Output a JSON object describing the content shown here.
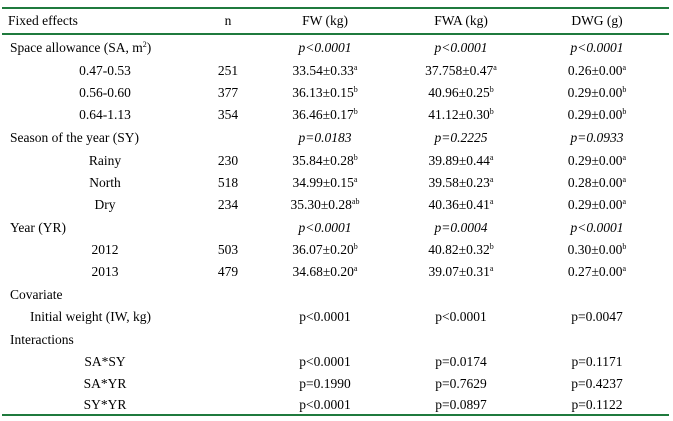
{
  "header": {
    "fixed_effects": "Fixed effects",
    "n": "n",
    "fw": "FW (kg)",
    "fwa": "FWA (kg)",
    "dwg": "DWG (g)"
  },
  "sections": {
    "sa": {
      "label": "Space allowance (SA, m",
      "label_sup": "2",
      "label_end": ")",
      "p_fw": "p<0.0001",
      "p_fwa": "p<0.0001",
      "p_dwg": "p<0.0001",
      "rows": [
        {
          "level": "0.47-0.53",
          "n": "251",
          "fw": "33.54±0.33",
          "fw_sup": "a",
          "fwa": "37.758±0.47",
          "fwa_sup": "a",
          "dwg": "0.26±0.00",
          "dwg_sup": "a"
        },
        {
          "level": "0.56-0.60",
          "n": "377",
          "fw": "36.13±0.15",
          "fw_sup": "b",
          "fwa": "40.96±0.25",
          "fwa_sup": "b",
          "dwg": "0.29±0.00",
          "dwg_sup": "b"
        },
        {
          "level": "0.64-1.13",
          "n": "354",
          "fw": "36.46±0.17",
          "fw_sup": "b",
          "fwa": "41.12±0.30",
          "fwa_sup": "b",
          "dwg": "0.29±0.00",
          "dwg_sup": "b"
        }
      ]
    },
    "sy": {
      "label": "Season of the year (SY)",
      "p_fw": "p=0.0183",
      "p_fwa": "p=0.2225",
      "p_dwg": "p=0.0933",
      "rows": [
        {
          "level": "Rainy",
          "n": "230",
          "fw": "35.84±0.28",
          "fw_sup": "b",
          "fwa": "39.89±0.44",
          "fwa_sup": "a",
          "dwg": "0.29±0.00",
          "dwg_sup": "a"
        },
        {
          "level": "North",
          "n": "518",
          "fw": "34.99±0.15",
          "fw_sup": "a",
          "fwa": "39.58±0.23",
          "fwa_sup": "a",
          "dwg": "0.28±0.00",
          "dwg_sup": "a"
        },
        {
          "level": "Dry",
          "n": "234",
          "fw": "35.30±0.28",
          "fw_sup": "ab",
          "fwa": "40.36±0.41",
          "fwa_sup": "a",
          "dwg": "0.29±0.00",
          "dwg_sup": "a"
        }
      ]
    },
    "yr": {
      "label": "Year (YR)",
      "p_fw": "p<0.0001",
      "p_fwa": "p=0.0004",
      "p_dwg": "p<0.0001",
      "rows": [
        {
          "level": "2012",
          "n": "503",
          "fw": "36.07±0.20",
          "fw_sup": "b",
          "fwa": "40.82±0.32",
          "fwa_sup": "b",
          "dwg": "0.30±0.00",
          "dwg_sup": "b"
        },
        {
          "level": "2013",
          "n": "479",
          "fw": "34.68±0.20",
          "fw_sup": "a",
          "fwa": "39.07±0.31",
          "fwa_sup": "a",
          "dwg": "0.27±0.00",
          "dwg_sup": "a"
        }
      ]
    },
    "covariate": {
      "label": "Covariate",
      "rows": [
        {
          "level": "Initial weight (IW, kg)",
          "fw": "p<0.0001",
          "fwa": "p<0.0001",
          "dwg": "p=0.0047"
        }
      ]
    },
    "interactions": {
      "label": "Interactions",
      "rows": [
        {
          "level": "SA*SY",
          "fw": "p<0.0001",
          "fwa": "p=0.0174",
          "dwg": "p=0.1171"
        },
        {
          "level": "SA*YR",
          "fw": "p=0.1990",
          "fwa": "p=0.7629",
          "dwg": "p=0.4237"
        },
        {
          "level": "SY*YR",
          "fw": "p<0.0001",
          "fwa": "p=0.0897",
          "dwg": "p=0.1122"
        }
      ]
    }
  },
  "colors": {
    "rule": "#1f7a3d",
    "text": "#000000"
  }
}
